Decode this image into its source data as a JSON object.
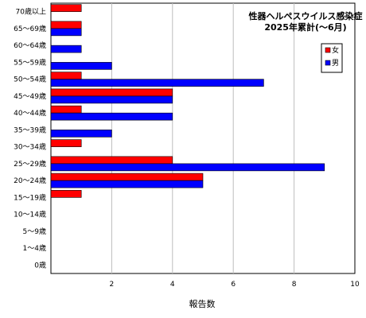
{
  "chart_data": {
    "type": "bar",
    "orientation": "horizontal",
    "title_line1": "性器ヘルペスウイルス感染症",
    "title_line2": "2025年累計(～6月)",
    "xlabel": "報告数",
    "ylabel": "",
    "xlim": [
      0,
      10
    ],
    "x_ticks": [
      2,
      4,
      6,
      8,
      10
    ],
    "grid": "vertical",
    "legend_position": "right",
    "categories": [
      "70歳以上",
      "65～69歳",
      "60～64歳",
      "55～59歳",
      "50～54歳",
      "45～49歳",
      "40～44歳",
      "35～39歳",
      "30～34歳",
      "25～29歳",
      "20～24歳",
      "15～19歳",
      "10～14歳",
      "5～9歳",
      "1～4歳",
      "0歳"
    ],
    "series": [
      {
        "name": "女",
        "color": "#ff0000",
        "values": [
          1,
          1,
          0,
          0,
          1,
          4,
          1,
          0,
          1,
          4,
          5,
          1,
          0,
          0,
          0,
          0
        ]
      },
      {
        "name": "男",
        "color": "#0000ff",
        "values": [
          0,
          1,
          1,
          2,
          7,
          4,
          4,
          2,
          0,
          9,
          5,
          0,
          0,
          0,
          0,
          0
        ]
      }
    ]
  }
}
